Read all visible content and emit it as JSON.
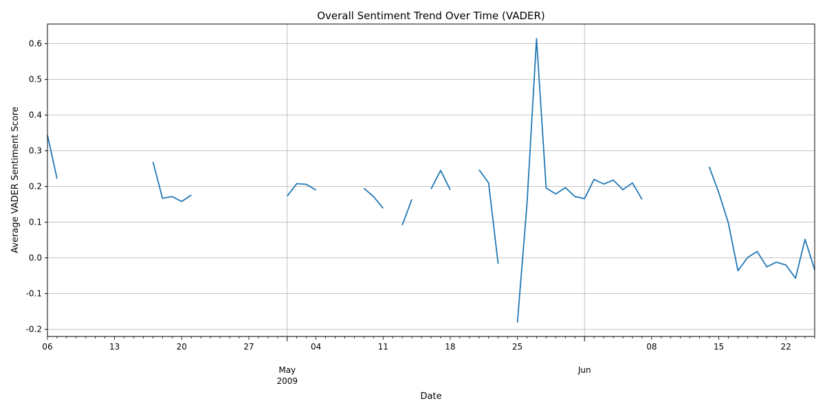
{
  "chart_data": {
    "type": "line",
    "title": "Overall Sentiment Trend Over Time (VADER)",
    "xlabel": "Date",
    "ylabel": "Average VADER Sentiment Score",
    "grid": true,
    "series_color": "#1f77b4",
    "xlim": [
      "2009-04-06",
      "2009-06-25"
    ],
    "ylim": [
      -0.22,
      0.655
    ],
    "y_ticks": [
      -0.2,
      -0.1,
      0.0,
      0.1,
      0.2,
      0.3,
      0.4,
      0.5,
      0.6
    ],
    "y_tick_labels": [
      "-0.2",
      "-0.1",
      "0.0",
      "0.1",
      "0.2",
      "0.3",
      "0.4",
      "0.5",
      "0.6"
    ],
    "x_major_ticks": [
      {
        "date": "2009-05-01",
        "label": "May",
        "sublabel": "2009"
      },
      {
        "date": "2009-06-01",
        "label": "Jun",
        "sublabel": ""
      }
    ],
    "x_minor_labels": [
      {
        "date": "2009-04-06",
        "label": "06"
      },
      {
        "date": "2009-04-13",
        "label": "13"
      },
      {
        "date": "2009-04-20",
        "label": "20"
      },
      {
        "date": "2009-04-27",
        "label": "27"
      },
      {
        "date": "2009-05-04",
        "label": "04"
      },
      {
        "date": "2009-05-11",
        "label": "11"
      },
      {
        "date": "2009-05-18",
        "label": "18"
      },
      {
        "date": "2009-05-25",
        "label": "25"
      },
      {
        "date": "2009-06-08",
        "label": "08"
      },
      {
        "date": "2009-06-15",
        "label": "15"
      },
      {
        "date": "2009-06-22",
        "label": "22"
      }
    ],
    "segments": [
      [
        [
          "2009-04-06",
          0.344
        ],
        [
          "2009-04-07",
          0.222
        ]
      ],
      [
        [
          "2009-04-17",
          0.269
        ],
        [
          "2009-04-18",
          0.167
        ],
        [
          "2009-04-19",
          0.172
        ],
        [
          "2009-04-20",
          0.158
        ],
        [
          "2009-04-21",
          0.176
        ]
      ],
      [
        [
          "2009-05-01",
          0.173
        ],
        [
          "2009-05-02",
          0.208
        ],
        [
          "2009-05-03",
          0.206
        ],
        [
          "2009-05-04",
          0.19
        ]
      ],
      [
        [
          "2009-05-09",
          0.195
        ],
        [
          "2009-05-10",
          0.172
        ],
        [
          "2009-05-11",
          0.139
        ]
      ],
      [
        [
          "2009-05-13",
          0.092
        ],
        [
          "2009-05-14",
          0.164
        ]
      ],
      [
        [
          "2009-05-16",
          0.193
        ],
        [
          "2009-05-17",
          0.245
        ],
        [
          "2009-05-18",
          0.191
        ]
      ],
      [
        [
          "2009-05-21",
          0.247
        ],
        [
          "2009-05-22",
          0.21
        ],
        [
          "2009-05-23",
          -0.017
        ]
      ],
      [
        [
          "2009-05-25",
          -0.181
        ],
        [
          "2009-05-26",
          0.15
        ],
        [
          "2009-05-27",
          0.614
        ],
        [
          "2009-05-28",
          0.196
        ],
        [
          "2009-05-29",
          0.179
        ],
        [
          "2009-05-30",
          0.197
        ],
        [
          "2009-05-31",
          0.172
        ],
        [
          "2009-06-01",
          0.166
        ],
        [
          "2009-06-02",
          0.22
        ],
        [
          "2009-06-03",
          0.207
        ],
        [
          "2009-06-04",
          0.218
        ],
        [
          "2009-06-05",
          0.191
        ],
        [
          "2009-06-06",
          0.21
        ],
        [
          "2009-06-07",
          0.164
        ]
      ],
      [
        [
          "2009-06-14",
          0.255
        ],
        [
          "2009-06-15",
          0.183
        ],
        [
          "2009-06-16",
          0.098
        ],
        [
          "2009-06-17",
          -0.036
        ],
        [
          "2009-06-18",
          0.001
        ],
        [
          "2009-06-19",
          0.018
        ],
        [
          "2009-06-20",
          -0.025
        ],
        [
          "2009-06-21",
          -0.012
        ],
        [
          "2009-06-22",
          -0.02
        ],
        [
          "2009-06-23",
          -0.057
        ],
        [
          "2009-06-24",
          0.052
        ],
        [
          "2009-06-25",
          -0.033
        ]
      ]
    ]
  }
}
